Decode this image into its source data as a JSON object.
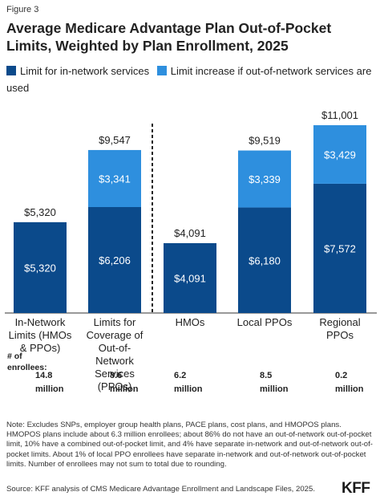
{
  "figure_label": "Figure 3",
  "title": "Average Medicare Advantage Plan Out-of-Pocket Limits, Weighted by Plan Enrollment, 2025",
  "legend": [
    {
      "label": "Limit for in-network services",
      "color": "#0b4a8b"
    },
    {
      "label": "Limit increase if out-of-network services are used",
      "color": "#2e8fde"
    }
  ],
  "enrollees_label": "# of enrollees:",
  "note": "Note: Excludes SNPs, employer group health plans, PACE plans, cost plans, and HMOPOS plans. HMOPOS plans include about 6.3 million enrollees; about 86% do not have an out-of-network out-of-pocket limit, 10% have a combined out-of-pocket limit, and 4% have separate in-network and out-of-network out-of-pocket limits. About 1% of local PPO enrollees have separate in-network and out-of-network out-of-pocket limits. Number of enrollees may not sum to total due to rounding.",
  "source": "Source: KFF analysis of CMS Medicare Advantage Enrollment and Landscape Files, 2025.",
  "logo": "KFF",
  "chart_data": {
    "type": "bar",
    "stacked": true,
    "categories": [
      "In-Network Limits (HMOs & PPOs)",
      "Limits for Coverage of Out-of-Network Services (PPOs)",
      "HMOs",
      "Local PPOs",
      "Regional PPOs"
    ],
    "category_lines": [
      [
        "In-Network",
        "Limits (HMOs",
        "& PPOs)"
      ],
      [
        "Limits for",
        "Coverage of",
        "Out-of-",
        "Network",
        "Services",
        "(PPOs)"
      ],
      [
        "HMOs"
      ],
      [
        "Local PPOs"
      ],
      [
        "Regional",
        "PPOs"
      ]
    ],
    "series": [
      {
        "name": "Limit for in-network services",
        "color": "#0b4a8b",
        "values": [
          5320,
          6206,
          4091,
          6180,
          7572
        ]
      },
      {
        "name": "Limit increase if out-of-network services are used",
        "color": "#2e8fde",
        "values": [
          0,
          3341,
          0,
          3339,
          3429
        ]
      }
    ],
    "segment_labels": [
      [
        "$5,320",
        "$6,206",
        "$4,091",
        "$6,180",
        "$7,572"
      ],
      [
        "",
        "$3,341",
        "",
        "$3,339",
        "$3,429"
      ]
    ],
    "total_labels": [
      "$5,320",
      "$9,547",
      "$4,091",
      "$9,519",
      "$11,001"
    ],
    "enrollees": [
      "14.8 million",
      "8.6 million",
      "6.2 million",
      "8.5 million",
      "0.2 million"
    ],
    "divider_after_category": 1,
    "ylim": [
      0,
      11001
    ],
    "grid": false
  }
}
